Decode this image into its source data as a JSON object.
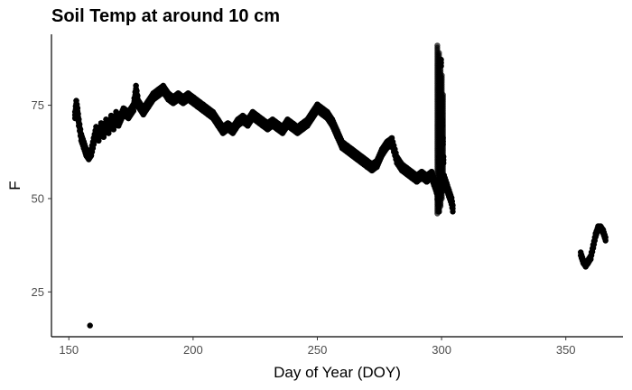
{
  "chart_data": {
    "type": "scatter",
    "title": "Soil Temp at around 10 cm",
    "xlabel": "Day of Year (DOY)",
    "ylabel": "F",
    "xlim": [
      143,
      373
    ],
    "ylim": [
      13,
      94
    ],
    "xticks": [
      150,
      200,
      250,
      300,
      350
    ],
    "yticks": [
      25,
      50,
      75
    ],
    "grid": false,
    "legend": "none",
    "colors": {
      "points": "#000000",
      "axis": "#000000",
      "tick_text": "#4d4d4d"
    },
    "series": [
      {
        "points": [
          [
            152.5,
            72
          ],
          [
            153,
            75
          ],
          [
            153.5,
            73
          ],
          [
            154,
            70
          ],
          [
            155,
            66
          ],
          [
            156,
            64
          ],
          [
            157,
            62
          ],
          [
            158,
            61
          ],
          [
            159,
            62
          ],
          [
            160,
            65
          ],
          [
            161,
            68
          ],
          [
            162,
            66
          ],
          [
            163,
            69
          ],
          [
            164,
            67
          ],
          [
            165,
            70
          ],
          [
            166,
            68
          ],
          [
            167,
            71
          ],
          [
            168,
            69
          ],
          [
            169,
            72
          ],
          [
            170,
            70
          ],
          [
            172,
            73
          ],
          [
            174,
            72
          ],
          [
            176,
            74
          ],
          [
            177,
            79
          ],
          [
            178,
            75
          ],
          [
            180,
            73
          ],
          [
            182,
            75
          ],
          [
            184,
            77
          ],
          [
            186,
            78
          ],
          [
            188,
            79
          ],
          [
            190,
            77
          ],
          [
            192,
            76
          ],
          [
            194,
            77
          ],
          [
            196,
            76
          ],
          [
            198,
            77
          ],
          [
            200,
            76
          ],
          [
            202,
            75
          ],
          [
            204,
            74
          ],
          [
            206,
            73
          ],
          [
            208,
            72
          ],
          [
            210,
            70
          ],
          [
            212,
            68
          ],
          [
            214,
            69
          ],
          [
            216,
            68
          ],
          [
            218,
            70
          ],
          [
            220,
            71
          ],
          [
            222,
            70
          ],
          [
            224,
            72
          ],
          [
            226,
            71
          ],
          [
            228,
            70
          ],
          [
            230,
            69
          ],
          [
            232,
            70
          ],
          [
            234,
            69
          ],
          [
            236,
            68
          ],
          [
            238,
            70
          ],
          [
            240,
            69
          ],
          [
            242,
            68
          ],
          [
            244,
            69
          ],
          [
            246,
            70
          ],
          [
            248,
            72
          ],
          [
            250,
            74
          ],
          [
            252,
            73
          ],
          [
            254,
            72
          ],
          [
            256,
            70
          ],
          [
            258,
            67
          ],
          [
            260,
            64
          ],
          [
            262,
            63
          ],
          [
            264,
            62
          ],
          [
            266,
            61
          ],
          [
            268,
            60
          ],
          [
            270,
            59
          ],
          [
            272,
            58
          ],
          [
            274,
            59
          ],
          [
            276,
            62
          ],
          [
            278,
            64
          ],
          [
            280,
            65
          ],
          [
            282,
            60
          ],
          [
            284,
            58
          ],
          [
            286,
            57
          ],
          [
            288,
            56
          ],
          [
            290,
            55
          ],
          [
            292,
            56
          ],
          [
            294,
            55
          ],
          [
            296,
            56
          ],
          [
            297,
            54
          ],
          [
            298,
            52
          ],
          [
            299,
            47
          ],
          [
            299,
            60
          ],
          [
            299.5,
            72
          ],
          [
            299.5,
            80
          ],
          [
            299.8,
            86
          ],
          [
            300,
            75
          ],
          [
            300.5,
            65
          ],
          [
            301,
            55
          ],
          [
            302,
            53
          ],
          [
            303,
            51
          ],
          [
            304,
            49
          ],
          [
            304.5,
            47
          ],
          [
            158.5,
            16
          ],
          [
            356,
            35
          ],
          [
            357,
            33
          ],
          [
            358,
            32
          ],
          [
            359,
            33
          ],
          [
            360,
            34
          ],
          [
            361,
            37
          ],
          [
            362,
            40
          ],
          [
            363,
            42
          ],
          [
            364,
            42
          ],
          [
            365,
            41
          ],
          [
            366,
            39
          ]
        ],
        "spikes": [
          {
            "x": 298.3,
            "y_min": 46,
            "y_max": 91
          },
          {
            "x": 299.0,
            "y_min": 47,
            "y_max": 89
          },
          {
            "x": 299.6,
            "y_min": 48,
            "y_max": 85
          },
          {
            "x": 300.1,
            "y_min": 50,
            "y_max": 83
          },
          {
            "x": 300.6,
            "y_min": 52,
            "y_max": 78
          }
        ]
      }
    ]
  }
}
